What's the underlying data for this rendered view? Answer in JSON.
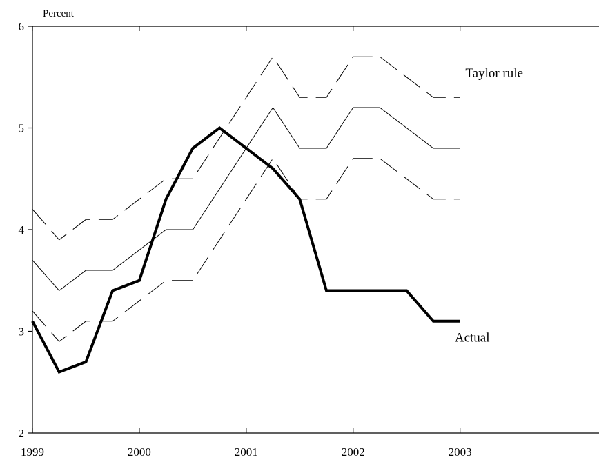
{
  "chart_data": {
    "type": "line",
    "ylabel": "Percent",
    "xlabel": "",
    "title": "",
    "xlim": [
      1999,
      2004.3
    ],
    "ylim": [
      2,
      6
    ],
    "xticks": [
      1999,
      2000,
      2001,
      2002,
      2003
    ],
    "yticks": [
      2,
      3,
      4,
      5,
      6
    ],
    "grid": false,
    "x": [
      1999.0,
      1999.25,
      1999.5,
      1999.75,
      2000.0,
      2000.25,
      2000.5,
      2000.75,
      2001.0,
      2001.25,
      2001.5,
      2001.75,
      2002.0,
      2002.25,
      2002.5,
      2002.75,
      2003.0
    ],
    "series": [
      {
        "name": "Actual",
        "style": "thick",
        "color": "#000000",
        "values": [
          3.1,
          2.6,
          2.7,
          3.4,
          3.5,
          4.3,
          4.8,
          5.0,
          4.8,
          4.6,
          4.3,
          3.4,
          3.4,
          3.4,
          3.4,
          3.1,
          3.1
        ]
      },
      {
        "name": "Taylor rule",
        "style": "thin",
        "color": "#000000",
        "values": [
          3.7,
          3.4,
          3.6,
          3.6,
          3.8,
          4.0,
          4.0,
          4.4,
          4.8,
          5.2,
          4.8,
          4.8,
          5.2,
          5.2,
          5.0,
          4.8,
          4.8
        ]
      },
      {
        "name": "",
        "style": "dashed",
        "color": "#000000",
        "values": [
          4.2,
          3.9,
          4.1,
          4.1,
          4.3,
          4.5,
          4.5,
          4.9,
          5.3,
          5.7,
          5.3,
          5.3,
          5.7,
          5.7,
          5.5,
          5.3,
          5.3
        ]
      },
      {
        "name": "",
        "style": "dashed",
        "color": "#000000",
        "values": [
          3.2,
          2.9,
          3.1,
          3.1,
          3.3,
          3.5,
          3.5,
          3.9,
          4.3,
          4.7,
          4.3,
          4.3,
          4.7,
          4.7,
          4.5,
          4.3,
          4.3
        ]
      }
    ],
    "annotations": [
      {
        "text": "Taylor rule",
        "x": 2003.05,
        "y": 5.5
      },
      {
        "text": "Actual",
        "x": 2002.95,
        "y": 2.9
      }
    ]
  }
}
